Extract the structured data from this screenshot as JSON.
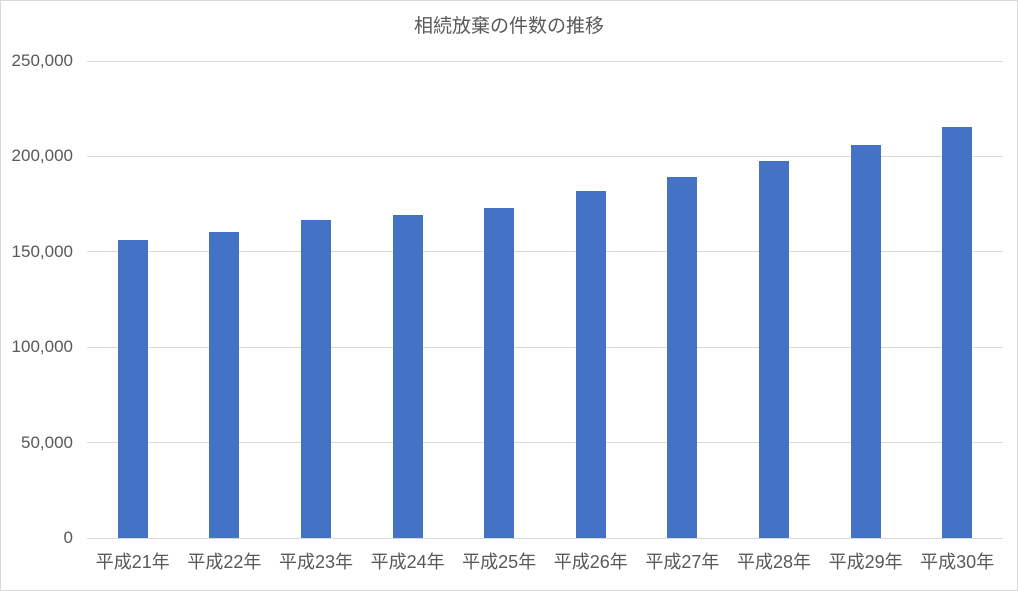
{
  "chart_data": {
    "type": "bar",
    "title": "相続放棄の件数の推移",
    "categories": [
      "平成21年",
      "平成22年",
      "平成23年",
      "平成24年",
      "平成25年",
      "平成26年",
      "平成27年",
      "平成28年",
      "平成29年",
      "平成30年"
    ],
    "values": [
      156419,
      160293,
      166463,
      169300,
      172936,
      182089,
      189296,
      197656,
      205909,
      215320
    ],
    "xlabel": "",
    "ylabel": "",
    "ylim": [
      0,
      250000
    ],
    "ytick_interval": 50000,
    "yticks": [
      {
        "value": 0,
        "label": "0"
      },
      {
        "value": 50000,
        "label": "50,000"
      },
      {
        "value": 100000,
        "label": "100,000"
      },
      {
        "value": 150000,
        "label": "150,000"
      },
      {
        "value": 200000,
        "label": "200,000"
      },
      {
        "value": 250000,
        "label": "250,000"
      }
    ],
    "grid": true,
    "legend": "none",
    "colors": {
      "bar": "#4472C4",
      "gridline": "#D9D9D9",
      "text": "#595959",
      "border": "#D9D9D9",
      "background": "#FFFFFF"
    }
  }
}
